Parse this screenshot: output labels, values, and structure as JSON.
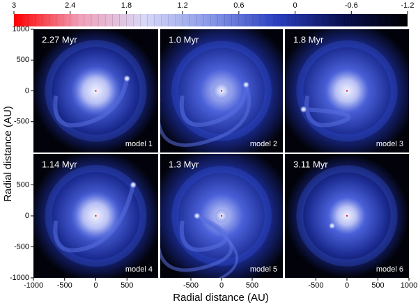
{
  "chart_data": {
    "type": "image-grid",
    "xlabel": "Radial distance (AU)",
    "ylabel": "Radial distance (AU)",
    "colorbar": {
      "lim": [
        3,
        -1.2
      ],
      "ticks": [
        3,
        2.4,
        1.8,
        1.2,
        0.6,
        0,
        -0.6,
        -1.2
      ],
      "colormap": [
        "#ff0000",
        "#f0a0b8",
        "#d8d8f8",
        "#8898e8",
        "#2a40c0",
        "#0a1050",
        "#000000"
      ]
    },
    "xlim": [
      -1000,
      1000
    ],
    "ylim": [
      -1000,
      1000
    ],
    "columns": [
      {
        "xticks": [
          -1000,
          -500,
          0,
          500
        ]
      },
      {
        "xticks": [
          -500,
          0,
          500
        ]
      },
      {
        "xticks": [
          -500,
          0,
          500,
          1000
        ]
      }
    ],
    "rows": [
      {
        "yticks": [
          1000,
          500,
          0,
          -500
        ]
      },
      {
        "yticks": [
          500,
          0,
          -500,
          -1000
        ]
      }
    ],
    "panels": [
      {
        "time": "2.27 Myr",
        "model": "model 1"
      },
      {
        "time": "1.0 Myr",
        "model": "model 2"
      },
      {
        "time": "1.8 Myr",
        "model": "model 3"
      },
      {
        "time": "1.14 Myr",
        "model": "model 4"
      },
      {
        "time": "1.3 Myr",
        "model": "model 5"
      },
      {
        "time": "3.11 Myr",
        "model": "model 6"
      }
    ]
  }
}
